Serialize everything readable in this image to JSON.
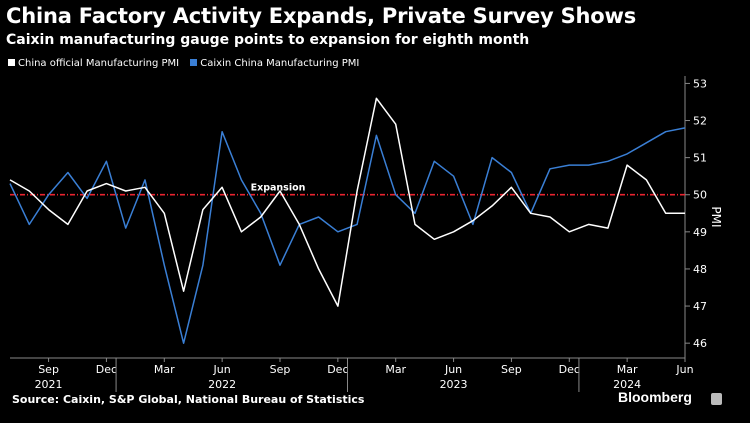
{
  "header": {
    "title": "China Factory Activity Expands, Private Survey Shows",
    "subtitle": "Caixin manufacturing gauge points to expansion for eighth month"
  },
  "footer": {
    "source": "Source: Caixin, S&P Global, National Bureau of Statistics",
    "brand": "Bloomberg"
  },
  "colors": {
    "background": "#000000",
    "official": "#ffffff",
    "caixin": "#3a7fd5",
    "reference": "#e8232f",
    "grid": "#777777"
  },
  "chart_data": {
    "type": "line",
    "ylabel": "PMI",
    "ylim": [
      45.6,
      53.2
    ],
    "yticks": [
      46,
      47,
      48,
      49,
      50,
      51,
      52,
      53
    ],
    "y_axis_position": "right",
    "grid": false,
    "legend": "top-left",
    "x": [
      "2021-07",
      "2021-08",
      "2021-09",
      "2021-10",
      "2021-11",
      "2021-12",
      "2022-01",
      "2022-02",
      "2022-03",
      "2022-04",
      "2022-05",
      "2022-06",
      "2022-07",
      "2022-08",
      "2022-09",
      "2022-10",
      "2022-11",
      "2022-12",
      "2023-01",
      "2023-02",
      "2023-03",
      "2023-04",
      "2023-05",
      "2023-06",
      "2023-07",
      "2023-08",
      "2023-09",
      "2023-10",
      "2023-11",
      "2023-12",
      "2024-01",
      "2024-02",
      "2024-03",
      "2024-04",
      "2024-05",
      "2024-06"
    ],
    "xticks": [
      {
        "x": "2021-09",
        "label": "Sep",
        "year": "2021"
      },
      {
        "x": "2021-12",
        "label": "Dec",
        "year": ""
      },
      {
        "x": "2022-03",
        "label": "Mar",
        "year": ""
      },
      {
        "x": "2022-06",
        "label": "Jun",
        "year": "2022"
      },
      {
        "x": "2022-09",
        "label": "Sep",
        "year": ""
      },
      {
        "x": "2022-12",
        "label": "Dec",
        "year": ""
      },
      {
        "x": "2023-03",
        "label": "Mar",
        "year": ""
      },
      {
        "x": "2023-06",
        "label": "Jun",
        "year": "2023"
      },
      {
        "x": "2023-09",
        "label": "Sep",
        "year": ""
      },
      {
        "x": "2023-12",
        "label": "Dec",
        "year": ""
      },
      {
        "x": "2024-03",
        "label": "Mar",
        "year": "2024"
      },
      {
        "x": "2024-06",
        "label": "Jun",
        "year": ""
      }
    ],
    "year_separators": [
      "2022-01",
      "2023-01",
      "2024-01"
    ],
    "series": [
      {
        "name": "China official Manufacturing PMI",
        "color": "#ffffff",
        "values": [
          50.4,
          50.1,
          49.6,
          49.2,
          50.1,
          50.3,
          50.1,
          50.2,
          49.5,
          47.4,
          49.6,
          50.2,
          49.0,
          49.4,
          50.1,
          49.2,
          48.0,
          47.0,
          50.1,
          52.6,
          51.9,
          49.2,
          48.8,
          49.0,
          49.3,
          49.7,
          50.2,
          49.5,
          49.4,
          49.0,
          49.2,
          49.1,
          50.8,
          50.4,
          49.5,
          49.5
        ]
      },
      {
        "name": "Caixin China Manufacturing PMI",
        "color": "#3a7fd5",
        "values": [
          50.3,
          49.2,
          50.0,
          50.6,
          49.9,
          50.9,
          49.1,
          50.4,
          48.1,
          46.0,
          48.1,
          51.7,
          50.4,
          49.5,
          48.1,
          49.2,
          49.4,
          49.0,
          49.2,
          51.6,
          50.0,
          49.5,
          50.9,
          50.5,
          49.2,
          51.0,
          50.6,
          49.5,
          50.7,
          50.8,
          50.8,
          50.9,
          51.1,
          51.4,
          51.7,
          51.8
        ]
      }
    ],
    "reference_line": {
      "y": 50,
      "label": "Expansion"
    }
  }
}
